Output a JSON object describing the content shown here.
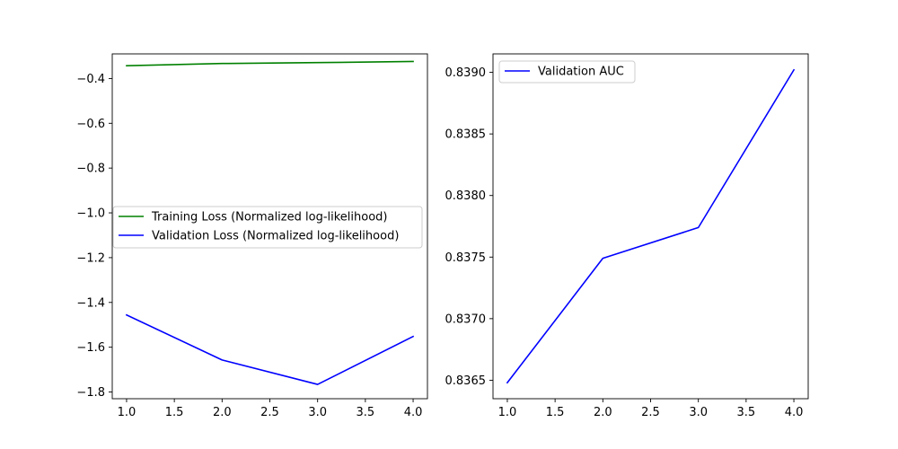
{
  "chart_data": [
    {
      "type": "line",
      "title": "",
      "xlabel": "",
      "ylabel": "",
      "xlim": [
        0.85,
        4.15
      ],
      "ylim": [
        -1.83,
        -0.29
      ],
      "xticks": [
        1.0,
        1.5,
        2.0,
        2.5,
        3.0,
        3.5,
        4.0
      ],
      "xtick_labels": [
        "1.0",
        "1.5",
        "2.0",
        "2.5",
        "3.0",
        "3.5",
        "4.0"
      ],
      "yticks": [
        -0.4,
        -0.6,
        -0.8,
        -1.0,
        -1.2,
        -1.4,
        -1.6,
        -1.8
      ],
      "ytick_labels": [
        "−0.4",
        "−0.6",
        "−0.8",
        "−1.0",
        "−1.2",
        "−1.4",
        "−1.6",
        "−1.8"
      ],
      "grid": false,
      "legend_position": "center-left",
      "series": [
        {
          "name": "Training Loss (Normalized log-likelihood)",
          "color": "#008000",
          "x": [
            1,
            2,
            3,
            4
          ],
          "y": [
            -0.343,
            -0.333,
            -0.329,
            -0.324
          ]
        },
        {
          "name": "Validation Loss (Normalized log-likelihood)",
          "color": "#0000ff",
          "x": [
            1,
            2,
            3,
            4
          ],
          "y": [
            -1.456,
            -1.657,
            -1.766,
            -1.552
          ]
        }
      ]
    },
    {
      "type": "line",
      "title": "",
      "xlabel": "",
      "ylabel": "",
      "xlim": [
        0.85,
        4.15
      ],
      "ylim": [
        0.83635,
        0.83915
      ],
      "xticks": [
        1.0,
        1.5,
        2.0,
        2.5,
        3.0,
        3.5,
        4.0
      ],
      "xtick_labels": [
        "1.0",
        "1.5",
        "2.0",
        "2.5",
        "3.0",
        "3.5",
        "4.0"
      ],
      "yticks": [
        0.8365,
        0.837,
        0.8375,
        0.838,
        0.8385,
        0.839
      ],
      "ytick_labels": [
        "0.8365",
        "0.8370",
        "0.8375",
        "0.8380",
        "0.8385",
        "0.8390"
      ],
      "grid": false,
      "legend_position": "top-left",
      "series": [
        {
          "name": "Validation AUC",
          "color": "#0000ff",
          "x": [
            1,
            2,
            3,
            4
          ],
          "y": [
            0.83648,
            0.83749,
            0.83774,
            0.83902
          ]
        }
      ]
    }
  ]
}
